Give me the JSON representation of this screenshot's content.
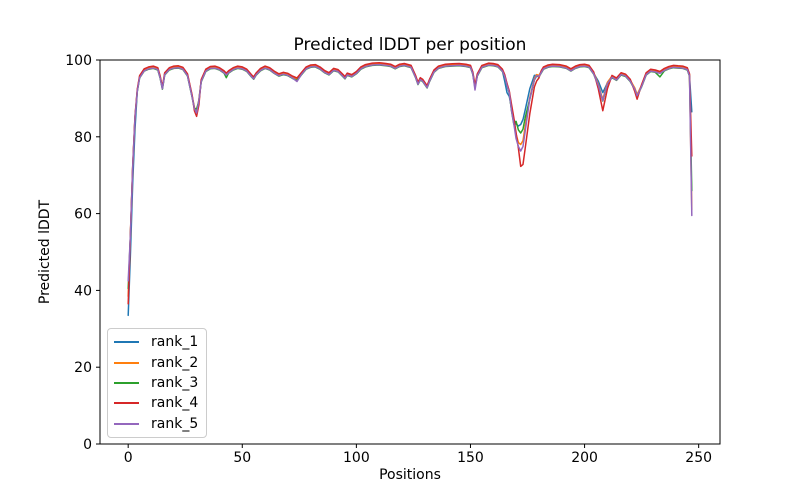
{
  "figure": {
    "title": "Predicted lDDT per position",
    "xlabel": "Positions",
    "ylabel": "Predicted lDDT"
  },
  "chart_data": {
    "type": "line",
    "title": "Predicted lDDT per position",
    "xlabel": "Positions",
    "ylabel": "Predicted lDDT",
    "xlim": [
      -12.35,
      259.35
    ],
    "ylim": [
      0,
      100
    ],
    "xticks": [
      0,
      50,
      100,
      150,
      200,
      250
    ],
    "yticks": [
      0,
      20,
      40,
      60,
      80,
      100
    ],
    "grid": false,
    "legend_position": "lower left",
    "x": [
      0,
      1,
      2,
      3,
      4,
      5,
      7,
      9,
      11,
      13,
      14,
      15,
      16,
      18,
      20,
      22,
      24,
      26,
      28,
      29,
      30,
      31,
      32,
      34,
      36,
      38,
      40,
      42,
      43,
      44,
      46,
      48,
      50,
      52,
      54,
      55,
      56,
      58,
      60,
      62,
      64,
      66,
      68,
      70,
      72,
      74,
      76,
      78,
      80,
      82,
      84,
      86,
      88,
      90,
      92,
      94,
      95,
      96,
      98,
      100,
      102,
      104,
      107,
      110,
      113,
      115,
      117,
      119,
      121,
      124,
      126,
      127,
      128,
      129,
      131,
      132,
      134,
      136,
      139,
      142,
      145,
      148,
      150,
      151,
      152,
      153,
      155,
      158,
      160,
      162,
      164,
      165,
      166,
      167,
      168,
      169,
      170,
      171,
      172,
      173,
      174,
      176,
      178,
      179,
      180,
      181,
      182,
      184,
      186,
      189,
      192,
      194,
      196,
      198,
      200,
      202,
      204,
      206,
      208,
      210,
      212,
      214,
      216,
      218,
      220,
      222,
      223,
      225,
      227,
      229,
      231,
      233,
      235,
      237,
      239,
      241,
      243,
      245,
      246,
      247
    ],
    "base_y": [
      38,
      55,
      72,
      85,
      92,
      95.5,
      97.3,
      97.8,
      98,
      97.6,
      95.5,
      92.6,
      96.3,
      97.6,
      98,
      98.1,
      97.7,
      96,
      90.5,
      87.5,
      86.3,
      89.5,
      94.5,
      97.2,
      97.9,
      98,
      97.6,
      96.8,
      96.2,
      96.8,
      97.6,
      98,
      97.8,
      97.2,
      95.8,
      95.2,
      96.2,
      97.4,
      98,
      97.6,
      96.7,
      96,
      96.4,
      96.1,
      95.4,
      94.9,
      96.4,
      97.8,
      98.3,
      98.4,
      97.8,
      96.9,
      96.3,
      97.4,
      97.1,
      95.9,
      95.3,
      96.2,
      95.8,
      96.6,
      97.8,
      98.4,
      98.8,
      98.9,
      98.7,
      98.5,
      97.9,
      98.5,
      98.7,
      98.2,
      95.5,
      93.8,
      95,
      94.6,
      92.9,
      94.5,
      97,
      98,
      98.5,
      98.6,
      98.7,
      98.5,
      98.2,
      96.5,
      93,
      96,
      98.2,
      98.8,
      98.7,
      98.4,
      97.2,
      95.8,
      93.5,
      91.5,
      87,
      83.5,
      80.5,
      78.5,
      75.5,
      77.5,
      82.5,
      90,
      95,
      96,
      95.8,
      96.8,
      97.8,
      98.3,
      98.5,
      98.4,
      98,
      97.3,
      98,
      98.4,
      98.5,
      98.2,
      96.5,
      93.5,
      89.5,
      94,
      95.6,
      94.9,
      96.3,
      95.9,
      94.6,
      92.5,
      90.8,
      93.2,
      96.3,
      97.2,
      97,
      96.6,
      97.4,
      97.9,
      98.2,
      98.1,
      98,
      97.6,
      96,
      62
    ],
    "series": [
      {
        "name": "rank_1",
        "color": "#1f77b4",
        "offset": 0.0,
        "overrides": {
          "0": 33.5,
          "1": 50,
          "2": 68,
          "3": 82,
          "91": 94.5,
          "92": 91.5,
          "93": 90.5,
          "94": 87.5,
          "95": 84.5,
          "96": 83.3,
          "97": 82.8,
          "98": 83.2,
          "99": 84.5,
          "100": 87,
          "101": 92.5,
          "102": 96,
          "117": 94.5,
          "118": 91.5,
          "138": 95.8,
          "139": 86.5
        }
      },
      {
        "name": "rank_2",
        "color": "#ff7f0e",
        "offset": 0.2,
        "overrides": {
          "0": 38.5,
          "97": 78.5,
          "98": 78,
          "99": 79,
          "139": 61
        }
      },
      {
        "name": "rank_3",
        "color": "#2ca02c",
        "offset": -0.2,
        "overrides": {
          "0": 40.5,
          "20": 87.3,
          "28": 95.4,
          "96": 84,
          "97": 81.8,
          "98": 81,
          "99": 82,
          "100": 85,
          "131": 95.6,
          "139": 66
        }
      },
      {
        "name": "rank_4",
        "color": "#d62728",
        "offset": 0.4,
        "overrides": {
          "0": 36.5,
          "19": 86.8,
          "20": 85.3,
          "21": 88.3,
          "94": 88.5,
          "95": 85,
          "96": 81,
          "97": 77,
          "98": 72.3,
          "99": 72.8,
          "100": 77,
          "101": 86,
          "102": 93,
          "103": 94.5,
          "104": 95.3,
          "117": 92.5,
          "118": 86.8,
          "119": 92.5,
          "125": 91.8,
          "126": 89.8,
          "139": 75
        }
      },
      {
        "name": "rank_5",
        "color": "#9467bd",
        "offset": -0.1,
        "overrides": {
          "0": 42.5,
          "45": 94.4,
          "84": 92.2,
          "96": 79.5,
          "97": 77.5,
          "98": 76.3,
          "99": 77.5,
          "100": 81.5,
          "139": 59.5
        }
      }
    ]
  }
}
